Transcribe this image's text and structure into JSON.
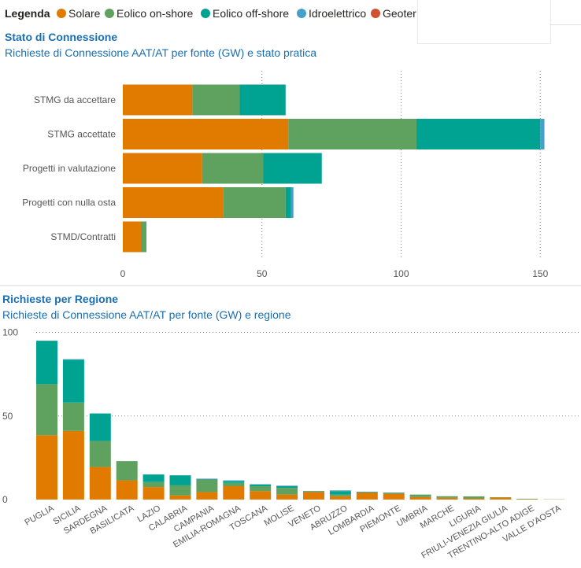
{
  "legend": {
    "title": "Legenda",
    "items": [
      {
        "label": "Solare",
        "color": "#e07b00"
      },
      {
        "label": "Eolico on-shore",
        "color": "#5fa15f"
      },
      {
        "label": "Eolico off-shore",
        "color": "#00a291"
      },
      {
        "label": "Idroelettrico",
        "color": "#46a0c8"
      },
      {
        "label": "Geoter",
        "color": "#d0512e"
      }
    ]
  },
  "chart_data": [
    {
      "type": "bar",
      "orientation": "horizontal",
      "stacked": true,
      "title": "Stato di Connessione",
      "subtitle": "Richieste di Connessione AAT/AT per fonte (GW) e stato pratica",
      "categories": [
        "STMG da accettare",
        "STMG accettate",
        "Progetti in valutazione",
        "Progetti con nulla osta",
        "STMD/Contratti"
      ],
      "series": [
        {
          "name": "Solare",
          "values": [
            25,
            59.5,
            28.5,
            36,
            6.5
          ]
        },
        {
          "name": "Eolico on-shore",
          "values": [
            17,
            46,
            22,
            22.5,
            2
          ]
        },
        {
          "name": "Eolico off-shore",
          "values": [
            16.5,
            44.5,
            21,
            2,
            0
          ]
        },
        {
          "name": "Idroelettrico",
          "values": [
            0,
            1.5,
            0,
            0.8,
            0
          ]
        }
      ],
      "xlim": [
        0,
        162
      ],
      "xticks": [
        0,
        50,
        100,
        150
      ],
      "grid": true
    },
    {
      "type": "bar",
      "stacked": true,
      "title": "Richieste per Regione",
      "subtitle": "Richieste di Connessione AAT/AT per fonte (GW) e regione",
      "categories": [
        "PUGLIA",
        "SICILIA",
        "SARDEGNA",
        "BASILICATA",
        "LAZIO",
        "CALABRIA",
        "CAMPANIA",
        "EMILIA-ROMAGNA",
        "TOSCANA",
        "MOLISE",
        "VENETO",
        "ABRUZZO",
        "LOMBARDIA",
        "PIEMONTE",
        "UMBRIA",
        "MARCHE",
        "LIGURIA",
        "FRIULI-VENEZIA GIULIA",
        "TRENTINO-ALTO ADIGE",
        "VALLE D'AOSTA"
      ],
      "series": [
        {
          "name": "Solare",
          "values": [
            38.5,
            41,
            19.5,
            11.5,
            7.5,
            2.5,
            4.5,
            8,
            5,
            3,
            4.5,
            2,
            4,
            3.5,
            1.5,
            1,
            0.7,
            1.2,
            0.2,
            0.1
          ]
        },
        {
          "name": "Eolico on-shore",
          "values": [
            30.5,
            17,
            15.5,
            11.5,
            3,
            6,
            7.5,
            2,
            3,
            4,
            0.5,
            1,
            0.5,
            0.5,
            1.5,
            1,
            1.2,
            0.2,
            0.3,
            0.1
          ]
        },
        {
          "name": "Eolico off-shore",
          "values": [
            26,
            25.5,
            16.5,
            0,
            4.5,
            6,
            0,
            1,
            1,
            1,
            0,
            2,
            0,
            0,
            0,
            0,
            0,
            0,
            0,
            0
          ]
        },
        {
          "name": "Idroelettrico",
          "values": [
            0,
            0.5,
            0,
            0,
            0,
            0,
            0.5,
            0.5,
            0.2,
            0.3,
            0.2,
            0.5,
            0.2,
            0.2,
            0,
            0,
            0,
            0,
            0,
            0
          ]
        }
      ],
      "ylim": [
        0,
        104
      ],
      "yticks": [
        0,
        50,
        100
      ],
      "grid": true
    }
  ]
}
